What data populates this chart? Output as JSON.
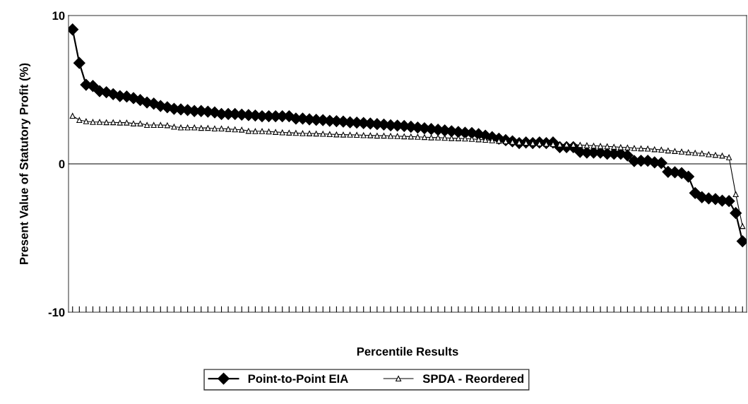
{
  "chart_data": {
    "type": "line",
    "xlabel": "Percentile Results",
    "ylabel": "Present Value of Statutory Profit (%)",
    "categories": [
      null,
      null,
      null,
      null,
      null,
      null,
      null,
      null,
      null,
      null,
      null,
      null,
      null,
      null,
      null,
      null,
      null,
      null,
      null,
      null,
      null,
      null,
      null,
      null,
      null,
      null,
      null,
      null,
      null,
      null,
      null,
      null,
      null,
      null,
      null,
      null,
      null,
      null,
      null,
      null,
      null,
      null,
      null,
      null,
      null,
      null,
      null,
      null,
      null,
      null,
      null,
      null,
      null,
      null,
      null,
      null,
      null,
      null,
      null,
      null,
      null,
      null,
      null,
      null,
      null,
      null,
      null,
      null,
      null,
      null,
      null,
      null,
      null,
      null,
      null,
      null,
      null,
      null,
      null,
      null,
      null,
      null,
      null,
      null,
      null,
      null,
      null,
      null,
      null,
      null,
      null,
      null,
      null,
      null,
      null,
      null,
      null,
      null,
      null,
      null
    ],
    "ylim": [
      -10,
      10
    ],
    "yticks": [
      -10,
      0,
      10
    ],
    "grid": false,
    "legend": "bottom",
    "line_style": "solid",
    "ref_lines": [
      {
        "axis": "y",
        "value": 0,
        "color": "#000000"
      }
    ],
    "series": [
      {
        "name": "Point-to-Point EIA",
        "color": "#000000",
        "marker": "diamond",
        "values": [
          9.06,
          6.8,
          5.33,
          5.25,
          4.9,
          4.83,
          4.7,
          4.57,
          4.54,
          4.43,
          4.3,
          4.14,
          4.06,
          3.9,
          3.82,
          3.71,
          3.67,
          3.63,
          3.56,
          3.56,
          3.52,
          3.47,
          3.36,
          3.36,
          3.36,
          3.32,
          3.29,
          3.26,
          3.21,
          3.21,
          3.21,
          3.21,
          3.21,
          3.05,
          3.05,
          3.0,
          2.97,
          2.95,
          2.9,
          2.88,
          2.85,
          2.8,
          2.78,
          2.75,
          2.72,
          2.68,
          2.65,
          2.6,
          2.58,
          2.55,
          2.5,
          2.45,
          2.4,
          2.35,
          2.3,
          2.25,
          2.2,
          2.15,
          2.1,
          2.08,
          2.0,
          1.9,
          1.8,
          1.7,
          1.6,
          1.52,
          1.4,
          1.44,
          1.4,
          1.44,
          1.4,
          1.44,
          1.13,
          1.13,
          1.13,
          0.81,
          0.76,
          0.76,
          0.76,
          0.68,
          0.68,
          0.68,
          0.57,
          0.19,
          0.21,
          0.21,
          0.1,
          0.06,
          -0.54,
          -0.57,
          -0.63,
          -0.86,
          -1.97,
          -2.25,
          -2.33,
          -2.37,
          -2.48,
          -2.51,
          -3.32,
          -5.22
        ]
      },
      {
        "name": "SPDA - Reordered",
        "color": "#000000",
        "marker": "triangle",
        "values": [
          3.24,
          2.95,
          2.87,
          2.82,
          2.82,
          2.8,
          2.8,
          2.78,
          2.78,
          2.72,
          2.72,
          2.62,
          2.62,
          2.62,
          2.6,
          2.5,
          2.45,
          2.45,
          2.45,
          2.42,
          2.42,
          2.38,
          2.38,
          2.35,
          2.32,
          2.3,
          2.22,
          2.2,
          2.2,
          2.18,
          2.15,
          2.12,
          2.1,
          2.08,
          2.06,
          2.05,
          2.04,
          2.02,
          2.0,
          1.98,
          1.97,
          1.96,
          1.95,
          1.93,
          1.92,
          1.9,
          1.9,
          1.88,
          1.87,
          1.85,
          1.84,
          1.82,
          1.8,
          1.78,
          1.77,
          1.75,
          1.73,
          1.72,
          1.7,
          1.68,
          1.65,
          1.62,
          1.58,
          1.55,
          1.52,
          1.49,
          1.45,
          1.42,
          1.4,
          1.38,
          1.35,
          1.33,
          1.31,
          1.3,
          1.29,
          1.27,
          1.25,
          1.22,
          1.2,
          1.18,
          1.15,
          1.12,
          1.1,
          1.06,
          1.04,
          1.02,
          0.98,
          0.95,
          0.9,
          0.86,
          0.82,
          0.78,
          0.74,
          0.7,
          0.64,
          0.6,
          0.55,
          0.44,
          -2.05,
          -4.2
        ]
      }
    ]
  }
}
